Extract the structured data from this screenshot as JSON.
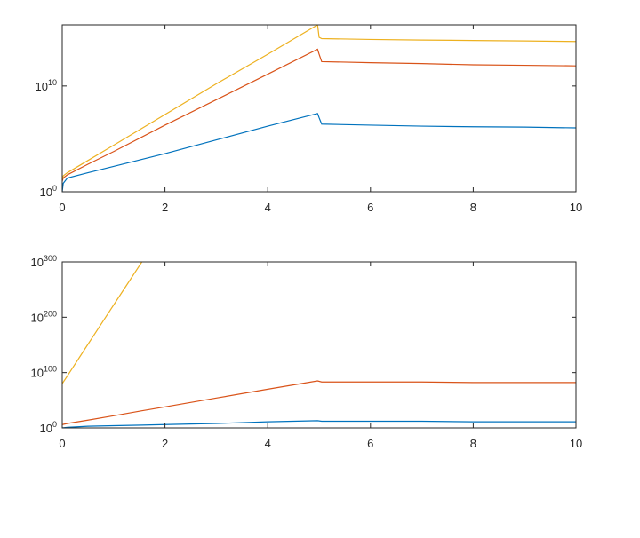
{
  "chart_data": [
    {
      "type": "line",
      "log_y": true,
      "grid": false,
      "x": [
        0,
        0.02,
        0.1,
        0.5,
        1,
        2,
        3,
        4,
        4.97,
        5,
        5.05,
        6,
        7,
        8,
        9,
        10
      ],
      "xlim": [
        0,
        10
      ],
      "xticks": [
        0,
        2,
        4,
        6,
        8,
        10
      ],
      "ylim": [
        1,
        6000000000000000.0
      ],
      "yticks": [
        {
          "value": 1,
          "label": "10^0"
        },
        {
          "value": 10000000000.0,
          "label": "10^10"
        }
      ],
      "series": [
        {
          "color": "#0072BD",
          "values": [
            1,
            6.3,
            20,
            63,
            250,
            4000,
            80000,
            1600000,
            25000000,
            10000000,
            2500000,
            2000000,
            1600000,
            1400000,
            1300000,
            1100000
          ]
        },
        {
          "color": "#D95319",
          "values": [
            10,
            20,
            40,
            400,
            6300,
            2000000,
            500000000,
            130000000000,
            30000000000000,
            10000000000000,
            2000000000000,
            1600000000000,
            1300000000000,
            1000000000000,
            900000000000,
            800000000000
          ]
        },
        {
          "color": "#EDB120",
          "values": [
            16,
            32,
            63,
            900,
            25000,
            20000000,
            16000000000,
            10000000000000,
            6000000000000000.0,
            400000000000000.0,
            300000000000000.0,
            250000000000000.0,
            220000000000000.0,
            200000000000000.0,
            180000000000000.0,
            160000000000000.0
          ]
        }
      ]
    },
    {
      "type": "line",
      "log_y": true,
      "grid": false,
      "x": [
        0,
        0.1,
        0.5,
        1,
        1.55,
        2,
        3,
        4,
        4.97,
        5.05,
        6,
        7,
        8,
        9,
        10
      ],
      "xlim": [
        0,
        10
      ],
      "xticks": [
        0,
        2,
        4,
        6,
        8,
        10
      ],
      "ylim": [
        1,
        1e+300
      ],
      "yticks": [
        {
          "value": 1,
          "label": "10^0"
        },
        {
          "value": 1e+100,
          "label": "10^100"
        },
        {
          "value": 1e+200,
          "label": "10^200"
        },
        {
          "value": 1e+300,
          "label": "10^300"
        }
      ],
      "series": [
        {
          "color": "#0072BD",
          "values": [
            1,
            10,
            1000,
            10000,
            100000,
            1000000,
            100000000,
            100000000000.0,
            10000000000000.0,
            1000000000000.0,
            1000000000000.0,
            1000000000000.0,
            100000000000.0,
            100000000000.0,
            100000000000.0
          ]
        },
        {
          "color": "#D95319",
          "values": [
            1000000.0,
            100000000.0,
            100000000000000.0,
            1e+22,
            1e+31,
            1e+38,
            1e+54,
            1e+70,
            1e+85,
            1e+83,
            1e+83,
            1e+83,
            1e+82,
            1e+82,
            1e+82
          ]
        },
        {
          "color": "#EDB120",
          "values": [
            1e+80,
            1e+94,
            1e+151,
            1e+222,
            1e+300,
            null,
            null,
            null,
            null,
            null,
            null,
            null,
            null,
            null,
            null
          ]
        }
      ]
    }
  ]
}
